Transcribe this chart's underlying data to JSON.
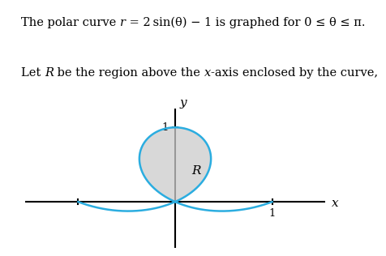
{
  "text_line1_parts": [
    "The polar curve ",
    "r",
    " = 2 sin(θ) − 1 is graphed for 0 ≤ θ ≤ π."
  ],
  "text_line2_parts": [
    "Let ",
    "R",
    " be the region above the ",
    "x",
    "-axis enclosed by the curve,"
  ],
  "curve_color": "#2BADE0",
  "fill_color": "#CCCCCC",
  "fill_alpha": 0.75,
  "axis_color": "#000000",
  "label_R": "R",
  "tick_label_1x": "1",
  "tick_label_1y": "1",
  "axis_label_x": "x",
  "axis_label_y": "y",
  "background_color": "#ffffff",
  "xlim": [
    -1.55,
    1.55
  ],
  "ylim": [
    -0.62,
    1.25
  ],
  "text_fontsize": 10.5,
  "lw_curve": 1.8,
  "lw_axis": 1.5
}
